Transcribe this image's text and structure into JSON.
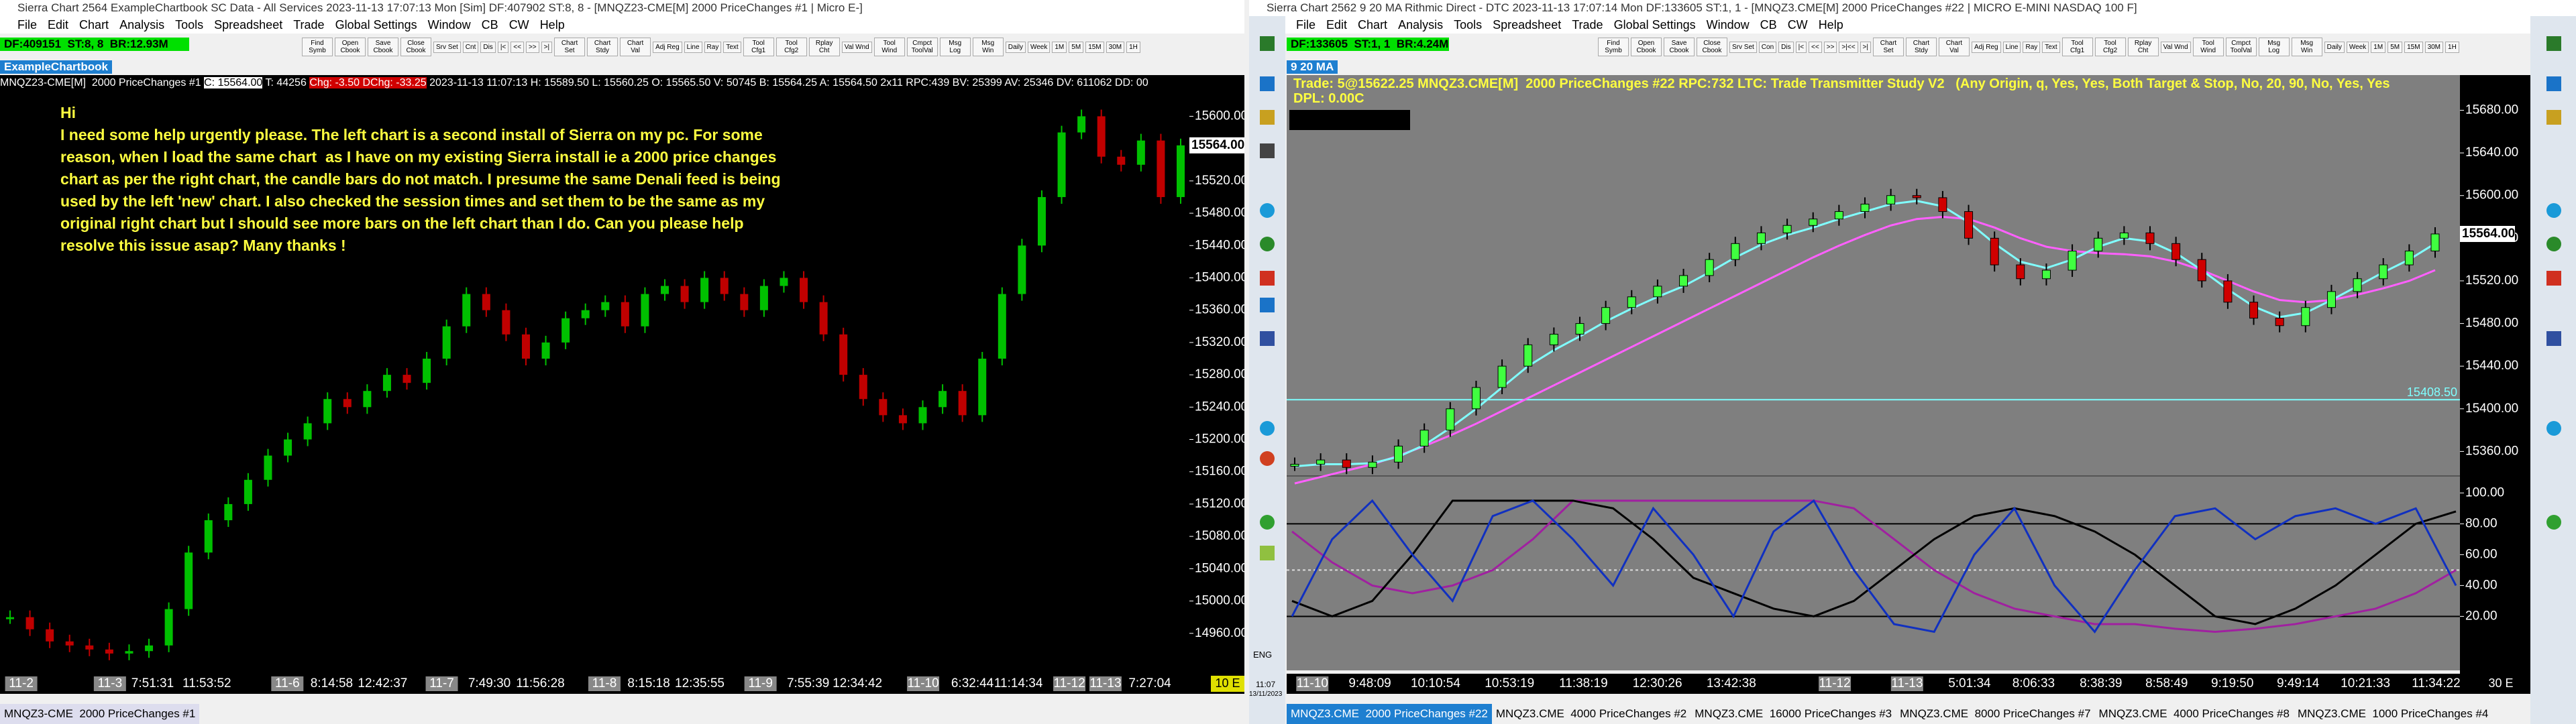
{
  "left": {
    "title": "Sierra Chart 2564 ExampleChartbook SC Data - All Services 2023-11-13  17:07:13 Mon [Sim]  DF:407902  ST:8, 8 - [MNQZ23-CME[M]  2000 PriceChanges #1 | Micro E-]",
    "menu": [
      "File",
      "Edit",
      "Chart",
      "Analysis",
      "Tools",
      "Spreadsheet",
      "Trade",
      "Global Settings",
      "Window",
      "CB",
      "CW",
      "Help"
    ],
    "toolbar": [
      "Find Symb",
      "Open Cbook",
      "Save Cbook",
      "Close Cbook",
      "Srv Set",
      "Cnt",
      "Dis",
      "|<",
      "<<",
      ">>",
      ">|",
      "Chart Set",
      "Chart Stdy",
      "Chart Val",
      "Adj Reg",
      "Line",
      "Ray",
      "Text",
      "Tool Cfg1",
      "Tool Cfg2",
      "Rplay Cht",
      "Val Wnd",
      "Tool Wind",
      "Cmpct ToolVal",
      "Msg Log",
      "Msg Win",
      "Daily",
      "Week",
      "1M",
      "5M",
      "15M",
      "30M",
      "1H"
    ],
    "status": "DF:409151  ST:8, 8  BR:12.93M",
    "tab": "ExampleChartbook",
    "info": {
      "symbol": "MNQZ23-CME[M]  2000 PriceChanges #1",
      "last": "C: 15564.00",
      "t": "T: 44256",
      "change": "Chg: -3.50 DChg: -33.25",
      "rest": "2023-11-13 11:07:13 H: 15589.50 L: 15560.25 O: 15565.50 V: 50745 B: 15564.25 A: 15564.50 2x11 RPC:439 BV: 25399 AV: 25346 DV: 611062 DD: 00"
    },
    "message": [
      "Hi",
      "I need some help urgently please. The left chart is a second install of Sierra on my pc. For some",
      "reason, when I load the same chart  as I have on my existing Sierra install ie a 2000 price changes",
      "chart as per the right chart, the candle bars do not match. I presume the same Denali feed is being",
      "used by the left 'new' chart. I also checked the session times and set them to be the same as my",
      "original right chart but I should see more bars on the left chart than I do. Can you please help",
      "resolve this issue asap? Many thanks !"
    ],
    "ylim": [
      14910,
      15651
    ],
    "yticks": [
      {
        "value": 14960,
        "label": "14960.00"
      },
      {
        "value": 15000,
        "label": "15000.00"
      },
      {
        "value": 15040,
        "label": "15040.00"
      },
      {
        "value": 15080,
        "label": "15080.00"
      },
      {
        "value": 15120,
        "label": "15120.00"
      },
      {
        "value": 15160,
        "label": "15160.00"
      },
      {
        "value": 15200,
        "label": "15200.00"
      },
      {
        "value": 15240,
        "label": "15240.00"
      },
      {
        "value": 15280,
        "label": "15280.00"
      },
      {
        "value": 15320,
        "label": "15320.00"
      },
      {
        "value": 15360,
        "label": "15360.00"
      },
      {
        "value": 15400,
        "label": "15400.00"
      },
      {
        "value": 15440,
        "label": "15440.00"
      },
      {
        "value": 15480,
        "label": "15480.00"
      },
      {
        "value": 15520,
        "label": "15520.00"
      },
      {
        "value": 15560,
        "label": "15560.00"
      },
      {
        "value": 15600,
        "label": "15600.00"
      }
    ],
    "price_label": "15564.00",
    "candles": [
      14980,
      14965,
      14950,
      14945,
      14940,
      14935,
      14938,
      14945,
      14990,
      15060,
      15100,
      15120,
      15150,
      15180,
      15200,
      15220,
      15250,
      15240,
      15260,
      15280,
      15270,
      15300,
      15340,
      15380,
      15360,
      15330,
      15300,
      15320,
      15350,
      15360,
      15370,
      15340,
      15380,
      15390,
      15370,
      15400,
      15380,
      15360,
      15390,
      15400,
      15370,
      15330,
      15280,
      15250,
      15230,
      15220,
      15240,
      15260,
      15230,
      15300,
      15380,
      15440,
      15500,
      15580,
      15600,
      15550,
      15540,
      15570,
      15500,
      15564
    ],
    "time_labels": [
      "11-2",
      "11-3",
      "7:51:31",
      "11:53:52",
      "11-6",
      "8:14:58",
      "12:42:37",
      "11-7",
      "7:49:30",
      "11:56:28",
      "11-8",
      "8:15:18",
      "12:35:55",
      "11-9",
      "7:55:39",
      "12:34:42",
      "11-10",
      "6:32:44",
      "11:14:34",
      "11-12",
      "11-13",
      "7:27:04"
    ],
    "axis_corner": "10 E",
    "bottom_tab": "MNQZ3-CME  2000 PriceChanges #1"
  },
  "right": {
    "title": "Sierra Chart 2562 9 20 MA Rithmic Direct - DTC 2023-11-13  17:07:14 Mon  DF:133605  ST:1, 1 - [MNQZ3.CME[M]  2000 PriceChanges #22 | MICRO E-MINI NASDAQ 100 F]",
    "menu": [
      "File",
      "Edit",
      "Chart",
      "Analysis",
      "Tools",
      "Spreadsheet",
      "Trade",
      "Global Settings",
      "Window",
      "CB",
      "CW",
      "Help"
    ],
    "toolbar": [
      "Find Symb",
      "Open Cbook",
      "Save Cbook",
      "Close Cbook",
      "Srv Set",
      "Con",
      "Dis",
      "|<",
      "<<",
      ">>",
      ">|<<",
      ">|",
      "Chart Set",
      "Chart Stdy",
      "Chart Val",
      "Adj Reg",
      "Line",
      "Ray",
      "Text",
      "Tool Cfg1",
      "Tool Cfg2",
      "Rplay Cht",
      "Val Wnd",
      "Tool Wind",
      "Cmpct ToolVal",
      "Msg Log",
      "Msg Win",
      "Daily",
      "Week",
      "1M",
      "5M",
      "15M",
      "30M",
      "1H"
    ],
    "status": "DF:133605  ST:1, 1  BR:4.24M",
    "tab": "9 20 MA",
    "header": [
      "Trade: 5@15622.25 MNQZ3.CME[M]  2000 PriceChanges #22 RPC:732 LTC: Trade Transmitter Study V2   (Any Origin, q, Yes, Yes, Both Target & Stop, No, 20, 90, No, Yes, Yes",
      "DPL: 0.00C"
    ],
    "ylim": [
      15337,
      15713
    ],
    "yticks": [
      {
        "value": 15360,
        "label": "15360.00"
      },
      {
        "value": 15400,
        "label": "15400.00"
      },
      {
        "value": 15440,
        "label": "15440.00"
      },
      {
        "value": 15480,
        "label": "15480.00"
      },
      {
        "value": 15520,
        "label": "15520.00"
      },
      {
        "value": 15560,
        "label": "15560.00"
      },
      {
        "value": 15600,
        "label": "15600.00"
      },
      {
        "value": 15640,
        "label": "15640.00"
      },
      {
        "value": 15680,
        "label": "15680.00"
      }
    ],
    "price_label": "15564.00",
    "hline": {
      "value": 15408.5,
      "label": "15408.50"
    },
    "candles": [
      15348,
      15352,
      15345,
      15350,
      15365,
      15380,
      15400,
      15420,
      15440,
      15460,
      15470,
      15480,
      15495,
      15505,
      15515,
      15525,
      15540,
      15555,
      15565,
      15572,
      15578,
      15585,
      15592,
      15600,
      15598,
      15585,
      15560,
      15535,
      15522,
      15530,
      15548,
      15560,
      15565,
      15555,
      15540,
      15520,
      15500,
      15485,
      15478,
      15495,
      15510,
      15522,
      15535,
      15548,
      15564
    ],
    "ma_fast": [
      15346,
      15348,
      15348,
      15349,
      15355,
      15366,
      15382,
      15400,
      15420,
      15440,
      15455,
      15468,
      15482,
      15494,
      15505,
      15515,
      15528,
      15542,
      15554,
      15563,
      15570,
      15578,
      15585,
      15592,
      15595,
      15590,
      15575,
      15555,
      15538,
      15532,
      15540,
      15552,
      15560,
      15557,
      15546,
      15530,
      15512,
      15496,
      15486,
      15490,
      15502,
      15515,
      15528,
      15540,
      15555
    ],
    "ma_slow": [
      15330,
      15336,
      15342,
      15348,
      15356,
      15365,
      15375,
      15386,
      15398,
      15410,
      15422,
      15434,
      15446,
      15458,
      15470,
      15482,
      15494,
      15506,
      15518,
      15530,
      15542,
      15553,
      15563,
      15572,
      15578,
      15580,
      15578,
      15570,
      15560,
      15552,
      15548,
      15546,
      15545,
      15543,
      15538,
      15530,
      15520,
      15510,
      15502,
      15500,
      15502,
      15507,
      15513,
      15520,
      15530
    ],
    "osc": {
      "ylim": [
        -15,
        111
      ],
      "yticks": [
        {
          "value": 20,
          "label": "20.00"
        },
        {
          "value": 40,
          "label": "40.00"
        },
        {
          "value": 60,
          "label": "60.00"
        },
        {
          "value": 80,
          "label": "80.00"
        },
        {
          "value": 100,
          "label": "100.00"
        }
      ],
      "levels": [
        80,
        50,
        20
      ],
      "blue": [
        20,
        70,
        95,
        60,
        30,
        85,
        95,
        70,
        40,
        90,
        60,
        20,
        75,
        95,
        50,
        15,
        10,
        60,
        90,
        40,
        10,
        50,
        85,
        90,
        70,
        85,
        90,
        80,
        90,
        40
      ],
      "black": [
        30,
        20,
        30,
        60,
        95,
        95,
        95,
        95,
        90,
        70,
        45,
        35,
        25,
        20,
        30,
        50,
        70,
        85,
        90,
        85,
        75,
        60,
        40,
        20,
        15,
        25,
        40,
        60,
        80,
        88
      ],
      "purple": [
        75,
        55,
        40,
        35,
        40,
        50,
        70,
        95,
        95,
        95,
        95,
        95,
        95,
        95,
        90,
        70,
        50,
        35,
        25,
        20,
        15,
        15,
        12,
        10,
        12,
        15,
        20,
        25,
        35,
        50
      ]
    },
    "time_labels": [
      "11-10",
      "9:48:09",
      "10:10:54",
      "10:53:19",
      "11:38:19",
      "12:30:26",
      "13:42:38",
      "11-12",
      "11-13",
      "5:01:34",
      "8:06:33",
      "8:38:39",
      "8:58:49",
      "9:19:50",
      "9:49:14",
      "10:21:33",
      "11:34:22"
    ],
    "axis_corner": "30 E",
    "bottom_tabs": [
      "MNQZ3.CME  2000 PriceChanges #22",
      "MNQZ3.CME  4000 PriceChanges #2",
      "MNQZ3.CME  16000 PriceChanges #3",
      "MNQZ3.CME  8000 PriceChanges #7",
      "MNQZ3.CME  4000 PriceChanges #8",
      "MNQZ3.CME  1000 PriceChanges #4"
    ],
    "tray": {
      "lang": "ENG",
      "time": "11:07",
      "date": "13/11/2023"
    }
  }
}
